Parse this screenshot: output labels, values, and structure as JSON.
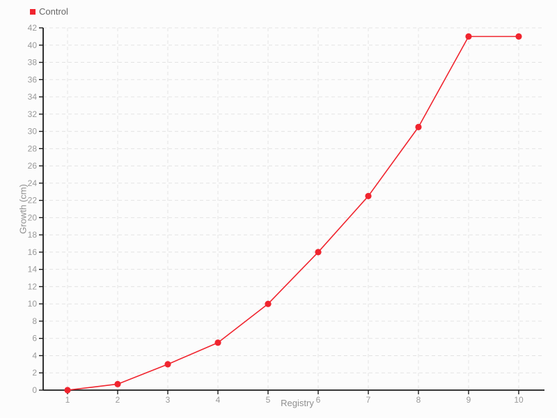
{
  "legend": {
    "label": "Control"
  },
  "axes": {
    "x_label": "Registry",
    "y_label": "Growth (cm)"
  },
  "colors": {
    "background": "#fcfcfc",
    "grid": "#e3e3e3",
    "axis": "#1a1a1a",
    "tick_label": "#999999",
    "axis_label": "#8f8f8f",
    "legend_text": "#666666",
    "series": "#f0242e"
  },
  "chart_data": {
    "type": "line",
    "title": "",
    "xlabel": "Registry",
    "ylabel": "Growth (cm)",
    "xlim": [
      1,
      10
    ],
    "ylim": [
      0,
      42
    ],
    "x_ticks": [
      1,
      2,
      3,
      4,
      5,
      6,
      7,
      8,
      9,
      10
    ],
    "y_ticks": [
      0,
      2,
      4,
      6,
      8,
      10,
      12,
      14,
      16,
      18,
      20,
      22,
      24,
      26,
      28,
      30,
      32,
      34,
      36,
      38,
      40,
      42
    ],
    "grid": true,
    "grid_style": "dashed",
    "legend_position": "top-left",
    "series": [
      {
        "name": "Control",
        "color": "#f0242e",
        "marker": "circle",
        "x": [
          1,
          2,
          3,
          4,
          5,
          6,
          7,
          8,
          9,
          10
        ],
        "y": [
          0,
          0.7,
          3,
          5.5,
          10,
          16,
          22.5,
          30.5,
          41,
          41
        ]
      }
    ]
  }
}
